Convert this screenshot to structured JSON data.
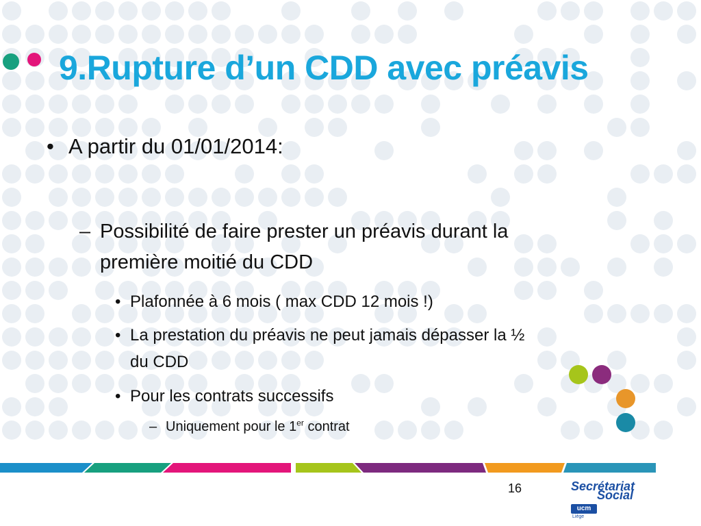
{
  "slide": {
    "title": "9.Rupture d’un CDD avec préavis",
    "page_number": "16"
  },
  "content": {
    "level1": {
      "bullet": "•",
      "text": "A partir du 01/01/2014:"
    },
    "level2": {
      "bullet": "–",
      "line1": "Possibilité de faire prester un préavis durant la",
      "line2": "première moitié du CDD"
    },
    "level3": [
      {
        "bullet": "•",
        "line1": "Plafonnée à 6 mois ( max CDD 12 mois !)",
        "line2": ""
      },
      {
        "bullet": "•",
        "line1": "La prestation du préavis ne peut jamais dépasser la ½",
        "line2": "du CDD"
      },
      {
        "bullet": "•",
        "line1": "Pour les contrats successifs",
        "line2": ""
      }
    ],
    "level4": {
      "bullet": "–",
      "text_before": "Uniquement pour le 1",
      "sup": "er",
      "text_after": " contrat"
    }
  },
  "logo": {
    "line1": "Secrétariat",
    "line2": "Social",
    "mark": "ucm",
    "sub": "Liège"
  },
  "colors": {
    "title": "#1aa7dc",
    "text": "#111111",
    "background_dots": "#e9eef3",
    "stripes": [
      "#1b8fc9",
      "#17a07f",
      "#e3157a",
      "#a6c51b",
      "#7d2a7f",
      "#f29a1e",
      "#2a95b8"
    ],
    "deco_dots": [
      "#a6c51b",
      "#8b2c7d",
      "#e8962a",
      "#1a8aa6"
    ],
    "title_dots": [
      "#17a07f",
      "#e3157a"
    ],
    "logo": "#1b4fa3"
  }
}
